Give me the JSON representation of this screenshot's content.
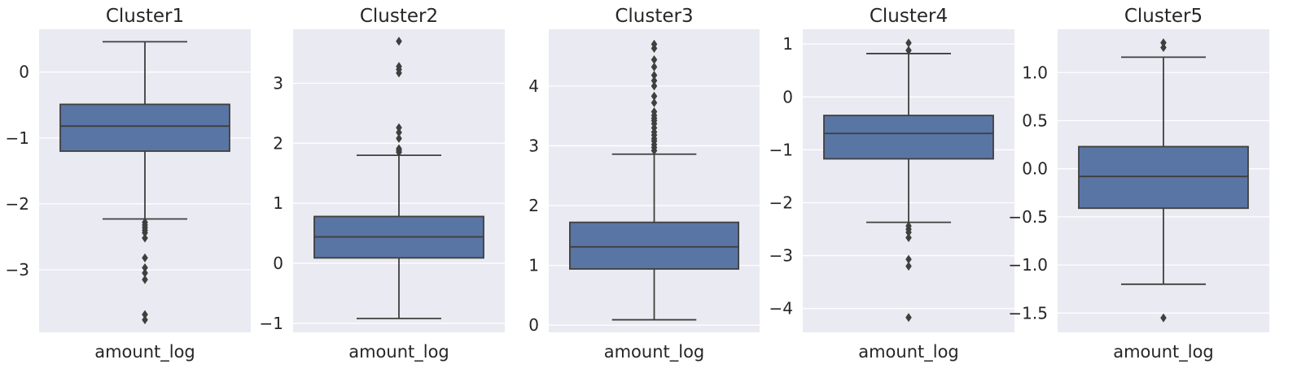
{
  "chart_data": [
    {
      "type": "box",
      "title": "Cluster1",
      "xlabel": "amount_log",
      "ylim": [
        -3.95,
        0.65
      ],
      "yticks": [
        0,
        -1,
        -2,
        -3
      ],
      "ytick_labels": [
        "0",
        "−1",
        "−2",
        "−3"
      ],
      "box": {
        "whisker_high": 0.46,
        "q3": -0.49,
        "median": -0.82,
        "q1": -1.2,
        "whisker_low": -2.23
      },
      "outliers": [
        -2.28,
        -2.32,
        -2.36,
        -2.4,
        -2.44,
        -2.52,
        -2.82,
        -2.97,
        -3.05,
        -3.15,
        -3.68,
        -3.76
      ],
      "grid": true
    },
    {
      "type": "box",
      "title": "Cluster2",
      "xlabel": "amount_log",
      "ylim": [
        -1.15,
        3.9
      ],
      "yticks": [
        3,
        2,
        1,
        0,
        -1
      ],
      "ytick_labels": [
        "3",
        "2",
        "1",
        "0",
        "−1"
      ],
      "box": {
        "whisker_high": 1.8,
        "q3": 0.78,
        "median": 0.44,
        "q1": 0.09,
        "whisker_low": -0.92
      },
      "outliers": [
        1.85,
        1.88,
        1.91,
        2.08,
        2.18,
        2.26,
        3.17,
        3.23,
        3.28,
        3.7
      ],
      "grid": true
    },
    {
      "type": "box",
      "title": "Cluster3",
      "xlabel": "amount_log",
      "ylim": [
        -0.12,
        4.95
      ],
      "yticks": [
        4,
        3,
        2,
        1,
        0
      ],
      "ytick_labels": [
        "4",
        "3",
        "2",
        "1",
        "0"
      ],
      "box": {
        "whisker_high": 2.86,
        "q3": 1.72,
        "median": 1.31,
        "q1": 0.94,
        "whisker_low": 0.09
      },
      "outliers": [
        2.92,
        2.97,
        3.02,
        3.08,
        3.12,
        3.18,
        3.23,
        3.3,
        3.37,
        3.42,
        3.46,
        3.51,
        3.57,
        3.72,
        3.83,
        4.0,
        4.09,
        4.18,
        4.32,
        4.44,
        4.63,
        4.7
      ],
      "grid": true
    },
    {
      "type": "box",
      "title": "Cluster4",
      "xlabel": "amount_log",
      "ylim": [
        -4.45,
        1.28
      ],
      "yticks": [
        1,
        0,
        -1,
        -2,
        -3,
        -4
      ],
      "ytick_labels": [
        "1",
        "0",
        "−1",
        "−2",
        "−3",
        "−4"
      ],
      "box": {
        "whisker_high": 0.82,
        "q3": -0.35,
        "median": -0.69,
        "q1": -1.17,
        "whisker_low": -2.37
      },
      "outliers": [
        0.88,
        1.02,
        -2.44,
        -2.5,
        -2.56,
        -2.66,
        -3.07,
        -3.2,
        -4.17
      ],
      "grid": true
    },
    {
      "type": "box",
      "title": "Cluster5",
      "xlabel": "amount_log",
      "ylim": [
        -1.7,
        1.45
      ],
      "yticks": [
        1.0,
        0.5,
        0.0,
        -0.5,
        -1.0,
        -1.5
      ],
      "ytick_labels": [
        "1.0",
        "0.5",
        "0.0",
        "−0.5",
        "−1.0",
        "−1.5"
      ],
      "box": {
        "whisker_high": 1.16,
        "q3": 0.23,
        "median": -0.08,
        "q1": -0.41,
        "whisker_low": -1.2
      },
      "outliers": [
        1.26,
        1.31,
        -1.55
      ],
      "grid": true
    }
  ],
  "colors": {
    "plot_background": "#eaeaf2",
    "grid": "#ffffff",
    "box_fill": "#5975a4",
    "box_line": "#3f3f3f",
    "text": "#262626"
  }
}
